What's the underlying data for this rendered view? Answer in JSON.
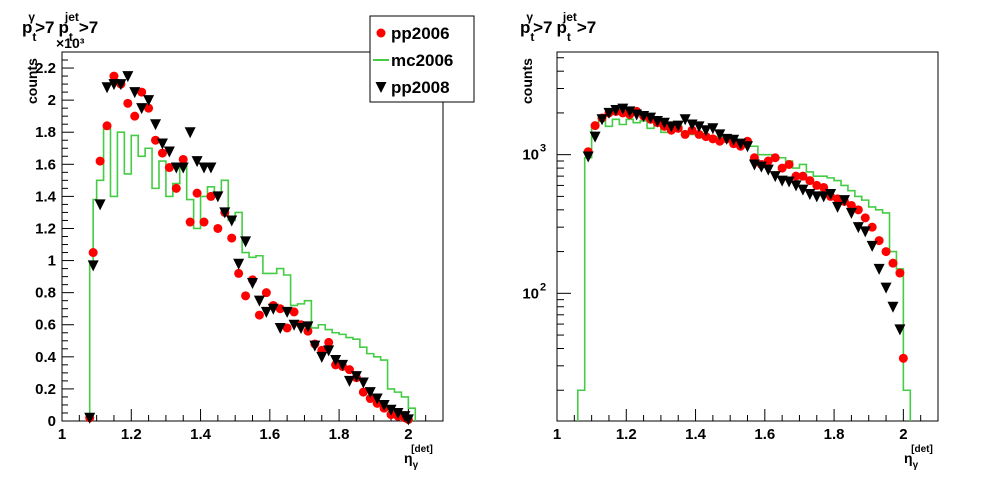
{
  "chart_data": [
    {
      "type": "scatter",
      "title": "p_t^γ>7 p_t^jet>7",
      "title_parts": {
        "p": "p",
        "t": "t",
        "gamma": "γ",
        "gt7": ">7",
        "jet": "jet"
      },
      "xlabel": "η_γ^[det]",
      "xlabel_parts": {
        "eta": "η",
        "gamma": "γ",
        "det": "[det]"
      },
      "ylabel": "counts",
      "exponent_label": "×10³",
      "xlim": [
        1,
        2.1
      ],
      "ylim": [
        0,
        2.3
      ],
      "y_scale": "linear",
      "grid": false,
      "legend_placement": "top-right",
      "x_ticks": [
        "1",
        "1.2",
        "1.4",
        "1.6",
        "1.8",
        "2"
      ],
      "x_tick_values": [
        1,
        1.2,
        1.4,
        1.6,
        1.8,
        2
      ],
      "y_ticks": [
        "0",
        "0.2",
        "0.4",
        "0.6",
        "0.8",
        "1",
        "1.2",
        "1.4",
        "1.6",
        "1.8",
        "2",
        "2.2"
      ],
      "y_tick_values": [
        0,
        0.2,
        0.4,
        0.6,
        0.8,
        1,
        1.2,
        1.4,
        1.6,
        1.8,
        2,
        2.2
      ],
      "series": [
        {
          "name": "pp2006",
          "marker": "circle",
          "color": "#ff0000",
          "x": [
            1.08,
            1.09,
            1.11,
            1.13,
            1.15,
            1.17,
            1.19,
            1.21,
            1.23,
            1.25,
            1.27,
            1.29,
            1.31,
            1.33,
            1.35,
            1.37,
            1.39,
            1.41,
            1.43,
            1.45,
            1.47,
            1.49,
            1.51,
            1.53,
            1.55,
            1.57,
            1.59,
            1.61,
            1.63,
            1.65,
            1.67,
            1.69,
            1.71,
            1.73,
            1.75,
            1.77,
            1.79,
            1.81,
            1.83,
            1.85,
            1.87,
            1.89,
            1.91,
            1.93,
            1.95,
            1.97,
            1.99,
            2.0
          ],
          "y": [
            0.02,
            1.05,
            1.62,
            1.84,
            2.15,
            2.1,
            1.98,
            1.9,
            2.05,
            1.95,
            1.75,
            1.67,
            1.58,
            1.45,
            1.63,
            1.24,
            1.42,
            1.24,
            1.4,
            1.2,
            1.3,
            1.14,
            0.92,
            0.78,
            0.88,
            0.66,
            0.8,
            0.72,
            0.7,
            0.58,
            0.68,
            0.6,
            0.56,
            0.48,
            0.44,
            0.49,
            0.35,
            0.34,
            0.32,
            0.27,
            0.18,
            0.14,
            0.11,
            0.08,
            0.04,
            0.03,
            0.02,
            0.01
          ]
        },
        {
          "name": "pp2008",
          "marker": "triangle-down",
          "color": "#000000",
          "x": [
            1.08,
            1.09,
            1.11,
            1.13,
            1.15,
            1.17,
            1.19,
            1.21,
            1.23,
            1.25,
            1.27,
            1.29,
            1.31,
            1.33,
            1.35,
            1.37,
            1.39,
            1.41,
            1.43,
            1.45,
            1.47,
            1.49,
            1.51,
            1.53,
            1.55,
            1.57,
            1.59,
            1.61,
            1.63,
            1.65,
            1.67,
            1.69,
            1.71,
            1.73,
            1.75,
            1.77,
            1.79,
            1.81,
            1.83,
            1.85,
            1.87,
            1.89,
            1.91,
            1.93,
            1.95,
            1.97,
            1.99,
            2.0
          ],
          "y": [
            0.02,
            0.97,
            1.35,
            2.08,
            2.1,
            2.1,
            2.15,
            2.05,
            1.95,
            2.0,
            1.85,
            1.73,
            1.68,
            1.58,
            1.58,
            1.8,
            1.62,
            1.58,
            1.58,
            1.4,
            1.3,
            1.25,
            0.98,
            1.12,
            0.86,
            0.75,
            0.68,
            0.7,
            0.58,
            0.68,
            0.6,
            0.58,
            0.59,
            0.47,
            0.4,
            0.44,
            0.38,
            0.35,
            0.25,
            0.28,
            0.24,
            0.18,
            0.14,
            0.1,
            0.07,
            0.05,
            0.03,
            0.01
          ]
        },
        {
          "name": "mc2006",
          "marker": "step-line",
          "color": "#44cc44",
          "edges": [
            1.08,
            1.09,
            1.1,
            1.12,
            1.14,
            1.16,
            1.18,
            1.2,
            1.22,
            1.24,
            1.26,
            1.28,
            1.3,
            1.32,
            1.34,
            1.36,
            1.38,
            1.4,
            1.42,
            1.44,
            1.46,
            1.48,
            1.5,
            1.52,
            1.54,
            1.56,
            1.58,
            1.6,
            1.62,
            1.64,
            1.66,
            1.68,
            1.7,
            1.72,
            1.74,
            1.76,
            1.78,
            1.8,
            1.82,
            1.84,
            1.86,
            1.88,
            1.9,
            1.92,
            1.94,
            1.96,
            1.98,
            2.0,
            2.02
          ],
          "values": [
            0.98,
            1.38,
            1.5,
            1.82,
            1.4,
            1.8,
            1.54,
            1.78,
            1.65,
            1.7,
            1.45,
            1.62,
            1.4,
            1.48,
            1.6,
            1.38,
            1.2,
            1.4,
            1.46,
            1.42,
            1.5,
            1.25,
            1.3,
            1.05,
            1.02,
            1.03,
            0.92,
            0.92,
            0.95,
            0.91,
            0.72,
            0.73,
            0.75,
            0.58,
            0.6,
            0.57,
            0.55,
            0.54,
            0.52,
            0.51,
            0.46,
            0.42,
            0.4,
            0.38,
            0.2,
            0.18,
            0.15,
            0.08
          ]
        }
      ]
    },
    {
      "type": "scatter",
      "title": "p_t^γ>7 p_t^jet>7",
      "title_parts": {
        "p": "p",
        "t": "t",
        "gamma": "γ",
        "gt7": ">7",
        "jet": "jet"
      },
      "xlabel": "η_γ^[det]",
      "xlabel_parts": {
        "eta": "η",
        "gamma": "γ",
        "det": "[det]"
      },
      "ylabel": "counts",
      "xlim": [
        1,
        2.1
      ],
      "ylim": [
        12,
        5500
      ],
      "y_scale": "log",
      "grid": false,
      "x_ticks": [
        "1",
        "1.2",
        "1.4",
        "1.6",
        "1.8",
        "2"
      ],
      "x_tick_values": [
        1,
        1.2,
        1.4,
        1.6,
        1.8,
        2
      ],
      "y_ticks": [
        {
          "base": "10",
          "exp": "2",
          "value": 100
        },
        {
          "base": "10",
          "exp": "3",
          "value": 1000
        }
      ],
      "series": [
        {
          "name": "pp2006",
          "marker": "circle",
          "color": "#ff0000",
          "x": [
            1.09,
            1.11,
            1.13,
            1.15,
            1.17,
            1.19,
            1.21,
            1.23,
            1.25,
            1.27,
            1.29,
            1.31,
            1.33,
            1.35,
            1.37,
            1.39,
            1.41,
            1.43,
            1.45,
            1.47,
            1.49,
            1.51,
            1.53,
            1.55,
            1.57,
            1.59,
            1.61,
            1.63,
            1.65,
            1.67,
            1.69,
            1.71,
            1.73,
            1.75,
            1.77,
            1.79,
            1.81,
            1.83,
            1.85,
            1.87,
            1.89,
            1.91,
            1.93,
            1.95,
            1.97,
            1.99,
            2.0
          ],
          "y": [
            1050,
            1620,
            1840,
            2000,
            2050,
            2000,
            1950,
            2050,
            1900,
            1800,
            1700,
            1600,
            1500,
            1550,
            1400,
            1500,
            1400,
            1350,
            1300,
            1250,
            1300,
            1200,
            1150,
            1250,
            950,
            850,
            900,
            950,
            800,
            850,
            700,
            700,
            650,
            600,
            580,
            500,
            480,
            460,
            430,
            400,
            350,
            300,
            240,
            200,
            165,
            140,
            34
          ]
        },
        {
          "name": "pp2008",
          "marker": "triangle-down",
          "color": "#000000",
          "x": [
            1.09,
            1.11,
            1.13,
            1.15,
            1.17,
            1.19,
            1.21,
            1.23,
            1.25,
            1.27,
            1.29,
            1.31,
            1.33,
            1.35,
            1.37,
            1.39,
            1.41,
            1.43,
            1.45,
            1.47,
            1.49,
            1.51,
            1.53,
            1.55,
            1.57,
            1.59,
            1.61,
            1.63,
            1.65,
            1.67,
            1.69,
            1.71,
            1.73,
            1.75,
            1.77,
            1.79,
            1.81,
            1.83,
            1.85,
            1.87,
            1.89,
            1.91,
            1.93,
            1.95,
            1.97,
            1.99
          ],
          "y": [
            970,
            1350,
            1800,
            2000,
            2100,
            2150,
            2050,
            1950,
            1900,
            1850,
            1750,
            1700,
            1600,
            1620,
            1800,
            1650,
            1600,
            1500,
            1550,
            1400,
            1300,
            1280,
            1200,
            1150,
            850,
            820,
            780,
            700,
            650,
            640,
            600,
            560,
            520,
            500,
            500,
            520,
            420,
            470,
            380,
            300,
            280,
            220,
            150,
            110,
            80,
            55
          ]
        },
        {
          "name": "mc2006",
          "marker": "step-line",
          "color": "#44cc44",
          "edges": [
            1.06,
            1.08,
            1.1,
            1.12,
            1.14,
            1.16,
            1.18,
            1.2,
            1.22,
            1.24,
            1.26,
            1.28,
            1.3,
            1.32,
            1.34,
            1.36,
            1.38,
            1.4,
            1.42,
            1.44,
            1.46,
            1.48,
            1.5,
            1.52,
            1.54,
            1.56,
            1.58,
            1.6,
            1.62,
            1.64,
            1.66,
            1.68,
            1.7,
            1.72,
            1.74,
            1.76,
            1.78,
            1.8,
            1.82,
            1.84,
            1.86,
            1.88,
            1.9,
            1.92,
            1.94,
            1.96,
            1.98,
            2.0,
            2.02
          ],
          "values": [
            20,
            950,
            1600,
            1800,
            1600,
            1800,
            1650,
            1800,
            1700,
            1750,
            1550,
            1650,
            1450,
            1600,
            1600,
            1400,
            1400,
            1450,
            1400,
            1350,
            1350,
            1300,
            1300,
            1200,
            1150,
            1150,
            1000,
            1000,
            950,
            950,
            900,
            800,
            850,
            750,
            700,
            700,
            680,
            650,
            600,
            550,
            500,
            470,
            420,
            400,
            380,
            200,
            150,
            20
          ]
        }
      ]
    }
  ]
}
